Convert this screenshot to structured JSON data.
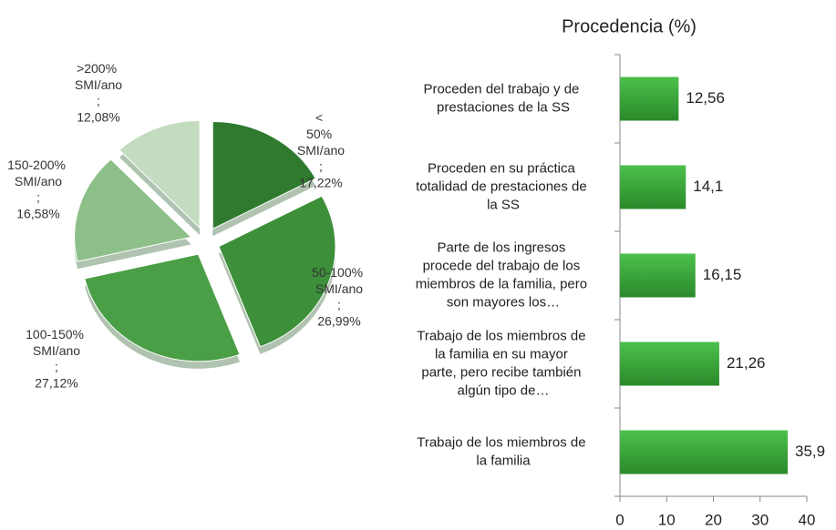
{
  "chart_data": [
    {
      "type": "pie",
      "categories": [
        "< 50% SMI/ano",
        "50-100% SMI/ano",
        "100-150% SMI/ano",
        "150-200% SMI/ano",
        ">200% SMI/ano"
      ],
      "values": [
        17.22,
        26.99,
        27.12,
        16.58,
        12.08
      ],
      "value_labels": [
        "17,22%",
        "26,99%",
        "27,12%",
        "16,58%",
        "12,08%"
      ],
      "label_separator": ";",
      "colors": [
        "#2f7a2f",
        "#3d8f3a",
        "#4a9e45",
        "#8dbf88",
        "#c3dbbf"
      ]
    },
    {
      "type": "bar",
      "orientation": "horizontal",
      "title": "Procedencia (%)",
      "categories": [
        "Proceden del trabajo y de prestaciones de la SS",
        "Proceden en su práctica totalidad de prestaciones de la SS",
        "Parte de los ingresos procede del trabajo de los miembros de la familia, pero son mayores los…",
        "Trabajo de los miembros de la familia en su mayor parte, pero recibe también algún tipo de…",
        "Trabajo de los miembros de la familia"
      ],
      "values": [
        12.56,
        14.1,
        16.15,
        21.26,
        35.9
      ],
      "value_labels": [
        "12,56",
        "14,1",
        "16,15",
        "21,26",
        "35,9"
      ],
      "color": "#3aa33a",
      "xlim": [
        0,
        40
      ],
      "xticks": [
        0,
        10,
        20,
        30,
        40
      ]
    }
  ]
}
